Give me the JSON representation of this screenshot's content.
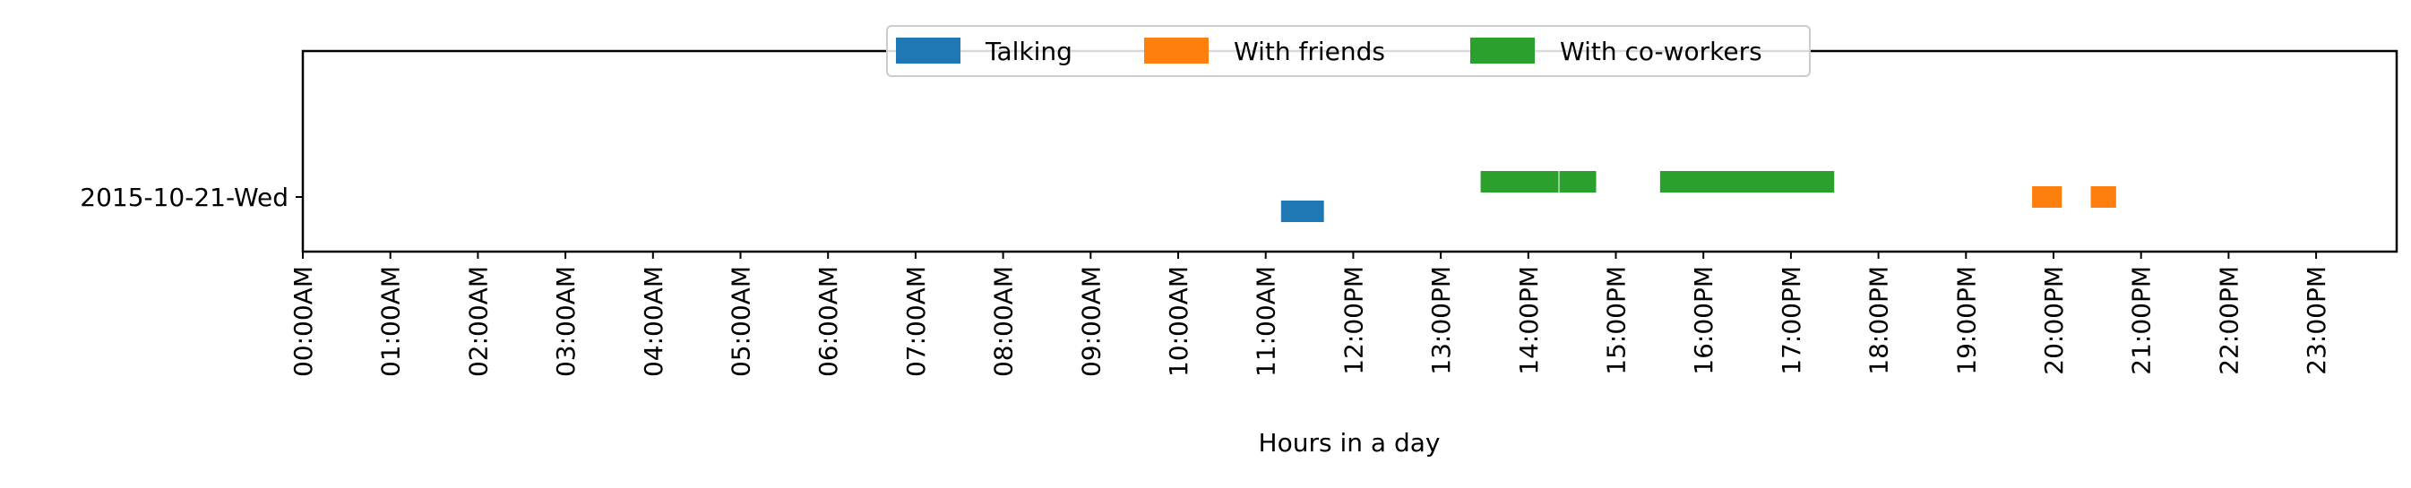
{
  "chart_data": {
    "type": "bar",
    "orientation": "horizontal-timeline",
    "title": "",
    "xlabel": "Hours in a day",
    "ylabel": "",
    "xlim": [
      0,
      24
    ],
    "categories": [
      "2015-10-21-Wed"
    ],
    "x_tick_labels": [
      "00:00AM",
      "01:00AM",
      "02:00AM",
      "03:00AM",
      "04:00AM",
      "05:00AM",
      "06:00AM",
      "07:00AM",
      "08:00AM",
      "09:00AM",
      "10:00AM",
      "11:00AM",
      "12:00PM",
      "13:00PM",
      "14:00PM",
      "15:00PM",
      "16:00PM",
      "17:00PM",
      "18:00PM",
      "19:00PM",
      "20:00PM",
      "21:00PM",
      "22:00PM",
      "23:00PM"
    ],
    "legend_position": "top-center",
    "grid": false,
    "series": [
      {
        "name": "Talking",
        "color": "#1f77b4",
        "segments": [
          {
            "day": "2015-10-21-Wed",
            "start": 11.17,
            "end": 11.67
          }
        ]
      },
      {
        "name": "With friends",
        "color": "#ff7f0e",
        "segments": [
          {
            "day": "2015-10-21-Wed",
            "start": 19.75,
            "end": 20.1
          },
          {
            "day": "2015-10-21-Wed",
            "start": 20.42,
            "end": 20.72
          }
        ]
      },
      {
        "name": "With co-workers",
        "color": "#2ca02c",
        "segments": [
          {
            "day": "2015-10-21-Wed",
            "start": 13.45,
            "end": 14.35
          },
          {
            "day": "2015-10-21-Wed",
            "start": 14.35,
            "end": 14.78
          },
          {
            "day": "2015-10-21-Wed",
            "start": 15.5,
            "end": 17.5
          }
        ]
      }
    ]
  }
}
